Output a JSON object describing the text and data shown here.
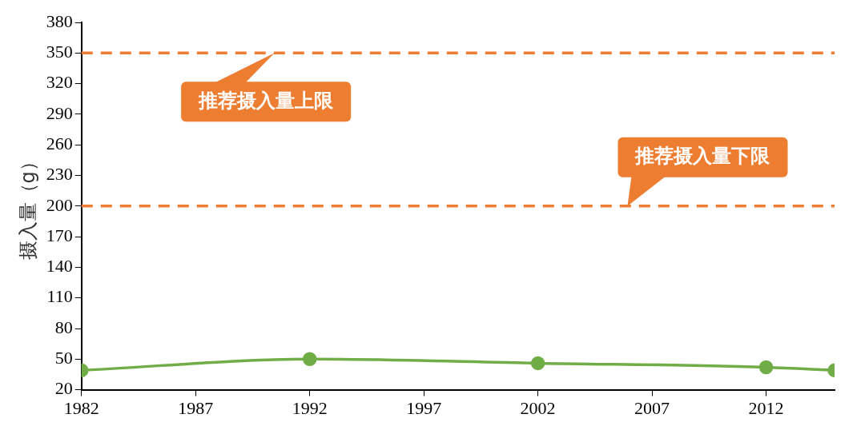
{
  "chart_data": {
    "type": "line",
    "ylabel": "摄入量（g）",
    "x": [
      1982,
      1992,
      2002,
      2012,
      2015
    ],
    "series": [
      {
        "color": "#70ad47",
        "values": [
          39,
          50,
          46,
          42,
          39
        ]
      }
    ],
    "xlim": [
      1982,
      2015
    ],
    "xticks": [
      1982,
      1987,
      1992,
      1997,
      2002,
      2007,
      2012
    ],
    "ylim": [
      20,
      380
    ],
    "yticks": [
      20,
      50,
      80,
      110,
      140,
      170,
      200,
      230,
      260,
      290,
      320,
      350,
      380
    ],
    "ref_lines": [
      {
        "axis": "y",
        "value": 350,
        "label": "推荐摄入量上限",
        "color": "#ed7d31",
        "line_style": "dashed"
      },
      {
        "axis": "y",
        "value": 200,
        "label": "推荐摄入量下限",
        "color": "#ed7d31",
        "line_style": "dashed"
      }
    ],
    "marker": "circle",
    "line_style": "solid",
    "grid": false
  }
}
